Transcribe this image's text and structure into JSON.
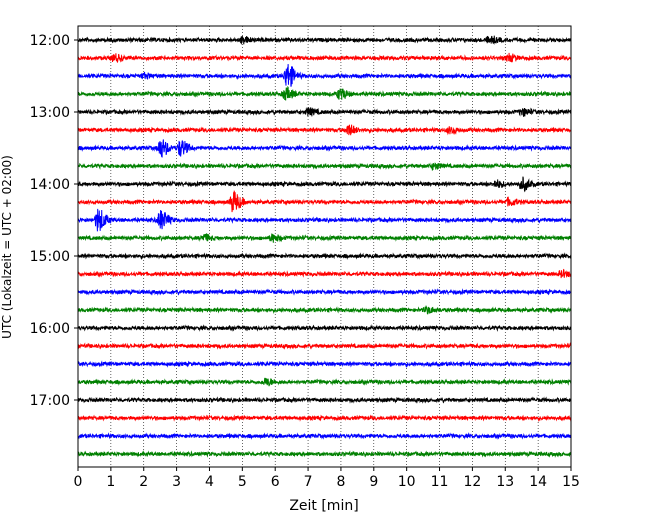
{
  "chart_data": {
    "type": "line",
    "title": "",
    "xlabel": "Zeit  [min]",
    "ylabel": "UTC (Lokalzeit = UTC + 02:00)",
    "xlim": [
      0,
      15
    ],
    "xticks": [
      "0",
      "1",
      "2",
      "3",
      "4",
      "5",
      "6",
      "7",
      "8",
      "9",
      "10",
      "11",
      "12",
      "13",
      "14",
      "15"
    ],
    "yticks": [
      "12:00",
      "13:00",
      "14:00",
      "15:00",
      "16:00",
      "17:00"
    ],
    "grid": "vertical dotted",
    "trace_colors": [
      "#000000",
      "#ff0000",
      "#0000ff",
      "#008000"
    ],
    "traces": [
      {
        "start": "12:00",
        "color": "#000000",
        "events": [
          {
            "t": 5.0,
            "amp": 0.25
          },
          {
            "t": 12.5,
            "amp": 0.3
          }
        ]
      },
      {
        "start": "12:15",
        "color": "#ff0000",
        "events": [
          {
            "t": 1.1,
            "amp": 0.3
          },
          {
            "t": 13.1,
            "amp": 0.3
          }
        ]
      },
      {
        "start": "12:30",
        "color": "#0000ff",
        "events": [
          {
            "t": 6.35,
            "amp": 1.1
          },
          {
            "t": 2.0,
            "amp": 0.2
          }
        ]
      },
      {
        "start": "12:45",
        "color": "#008000",
        "events": [
          {
            "t": 6.3,
            "amp": 0.5
          },
          {
            "t": 7.95,
            "amp": 0.45
          }
        ]
      },
      {
        "start": "13:00",
        "color": "#000000",
        "events": [
          {
            "t": 7.0,
            "amp": 0.3
          },
          {
            "t": 13.5,
            "amp": 0.3
          }
        ]
      },
      {
        "start": "13:15",
        "color": "#ff0000",
        "events": [
          {
            "t": 8.2,
            "amp": 0.45
          },
          {
            "t": 11.3,
            "amp": 0.25
          }
        ]
      },
      {
        "start": "13:30",
        "color": "#0000ff",
        "events": [
          {
            "t": 2.5,
            "amp": 0.8
          },
          {
            "t": 3.1,
            "amp": 0.7
          }
        ]
      },
      {
        "start": "13:45",
        "color": "#008000",
        "events": [
          {
            "t": 10.8,
            "amp": 0.25
          }
        ]
      },
      {
        "start": "14:00",
        "color": "#000000",
        "events": [
          {
            "t": 13.5,
            "amp": 0.55
          },
          {
            "t": 12.7,
            "amp": 0.3
          }
        ]
      },
      {
        "start": "14:15",
        "color": "#ff0000",
        "events": [
          {
            "t": 4.7,
            "amp": 0.9
          },
          {
            "t": 13.1,
            "amp": 0.3
          }
        ]
      },
      {
        "start": "14:30",
        "color": "#0000ff",
        "events": [
          {
            "t": 0.6,
            "amp": 1.0
          },
          {
            "t": 2.5,
            "amp": 0.85
          }
        ]
      },
      {
        "start": "14:45",
        "color": "#008000",
        "events": [
          {
            "t": 3.8,
            "amp": 0.3
          },
          {
            "t": 5.9,
            "amp": 0.3
          }
        ]
      },
      {
        "start": "15:00",
        "color": "#000000",
        "events": []
      },
      {
        "start": "15:15",
        "color": "#ff0000",
        "events": [
          {
            "t": 14.7,
            "amp": 0.25
          }
        ]
      },
      {
        "start": "15:30",
        "color": "#0000ff",
        "events": []
      },
      {
        "start": "15:45",
        "color": "#008000",
        "events": [
          {
            "t": 10.6,
            "amp": 0.25
          }
        ]
      },
      {
        "start": "16:00",
        "color": "#000000",
        "events": []
      },
      {
        "start": "16:15",
        "color": "#ff0000",
        "events": []
      },
      {
        "start": "16:30",
        "color": "#0000ff",
        "events": []
      },
      {
        "start": "16:45",
        "color": "#008000",
        "events": [
          {
            "t": 5.7,
            "amp": 0.3
          }
        ]
      },
      {
        "start": "17:00",
        "color": "#000000",
        "events": []
      },
      {
        "start": "17:15",
        "color": "#ff0000",
        "events": []
      },
      {
        "start": "17:30",
        "color": "#0000ff",
        "events": []
      },
      {
        "start": "17:45",
        "color": "#008000",
        "events": []
      }
    ]
  }
}
